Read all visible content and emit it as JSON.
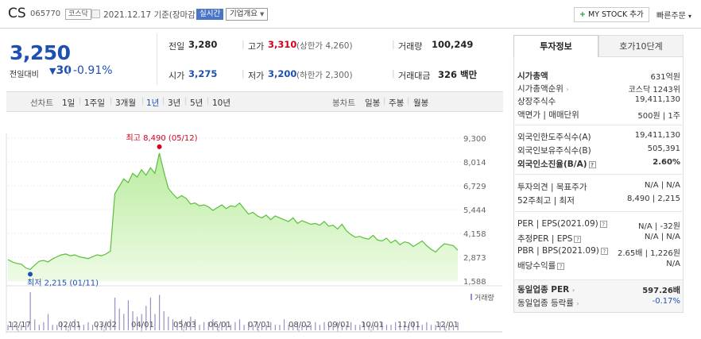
{
  "header": {
    "name": "CS",
    "code": "065770",
    "market": "코스닥",
    "date_text": "2021.12.17  기준(장마감)",
    "realtime_label": "실시간",
    "corp_info_label": "기업개요",
    "mystock_label": "MY STOCK 추가",
    "quick_order_label": "빠른주문"
  },
  "price": {
    "current": "3,250",
    "change_label": "전일대비",
    "change_value": "30",
    "change_pct": "-0.91%"
  },
  "quote": {
    "prev_label": "전일",
    "prev_value": "3,280",
    "high_label": "고가",
    "high_value": "3,310",
    "upper_limit": "(상한가 4,260)",
    "volume_label": "거래량",
    "volume_value": "100,249",
    "open_label": "시가",
    "open_value": "3,275",
    "low_label": "저가",
    "low_value": "3,200",
    "lower_limit": "(하한가 2,300)",
    "amount_label": "거래대금",
    "amount_value": "326 백만"
  },
  "period_bar": {
    "line_label": "선차트",
    "periods": [
      "1일",
      "1주일",
      "3개월",
      "1년",
      "3년",
      "5년",
      "10년"
    ],
    "candle_label": "봉차트",
    "candles": [
      "일봉",
      "주봉",
      "월봉"
    ]
  },
  "right_panel": {
    "tabs": [
      "투자정보",
      "호가10단계"
    ],
    "market_cap_label": "시가총액",
    "market_cap_value": "631억원",
    "cap_rank_label": "시가총액순위",
    "cap_rank_value": "코스닥 1243위",
    "shares_label": "상장주식수",
    "shares_value": "19,411,130",
    "par_label": "액면가 | 매매단위",
    "par_value": "500원 | 1주",
    "foreign_limit_label": "외국인한도주식수(A)",
    "foreign_limit_value": "19,411,130",
    "foreign_hold_label": "외국인보유주식수(B)",
    "foreign_hold_value": "505,391",
    "foreign_rate_label": "외국인소진율(B/A)",
    "foreign_rate_value": "2.60%",
    "opinion_label": "투자의견 | 목표주가",
    "opinion_value": "N/A | N/A",
    "week52_label": "52주최고 | 최저",
    "week52_value": "8,490 | 2,215",
    "per_label": "PER | EPS(2021.09)",
    "per_value": "N/A | -32원",
    "est_per_label": "추정PER | EPS",
    "est_per_value": "N/A | N/A",
    "pbr_label": "PBR | BPS(2021.09)",
    "pbr_value": "2.65배 | 1,226원",
    "div_label": "배당수익률",
    "div_value": "N/A",
    "sector_per_label": "동일업종 PER",
    "sector_per_value": "597.26배",
    "sector_rate_label": "동일업종 등락률",
    "sector_rate_value": "-0.17%"
  },
  "chart_data": {
    "type": "area",
    "high_annotation": "최고 8,490 (05/12)",
    "low_annotation": "최저 2,215 (01/11)",
    "volume_label": "거래량",
    "y_ticks": [
      "9,300",
      "8,014",
      "6,729",
      "5,444",
      "4,158",
      "2,873",
      "1,588"
    ],
    "ylim": [
      1588,
      9300
    ],
    "x_ticks": [
      "12/17",
      "02/01",
      "03/02",
      "04/01",
      "05/03",
      "06/01",
      "07/01",
      "08/02",
      "09/01",
      "10/01",
      "11/01",
      "12/01"
    ],
    "values": [
      2750,
      2620,
      2540,
      2500,
      2300,
      2215,
      2450,
      2650,
      2700,
      2620,
      2780,
      2900,
      3000,
      3050,
      2950,
      3000,
      2900,
      2850,
      2800,
      2900,
      3000,
      2950,
      3050,
      3200,
      6300,
      6700,
      7100,
      6900,
      7400,
      7200,
      7600,
      7300,
      7700,
      7400,
      8490,
      7500,
      6600,
      6300,
      6050,
      6200,
      6050,
      5750,
      5800,
      5650,
      5700,
      5600,
      5400,
      5550,
      5700,
      5500,
      5650,
      5600,
      5800,
      5500,
      5200,
      5300,
      5100,
      5000,
      5150,
      4900,
      5100,
      5000,
      4900,
      4800,
      5000,
      4700,
      4850,
      4750,
      4650,
      4700,
      4600,
      4800,
      4550,
      4600,
      4400,
      4650,
      4300,
      4100,
      3950,
      4000,
      3900,
      3850,
      4050,
      3800,
      3750,
      3900,
      3650,
      3800,
      3550,
      3700,
      3650,
      3450,
      3600,
      3750,
      3500,
      3300,
      3150,
      3400,
      3600,
      3550,
      3500,
      3250
    ],
    "volume": [
      2,
      3,
      2,
      2,
      3,
      14,
      4,
      2,
      3,
      6,
      2,
      2,
      3,
      2,
      2,
      4,
      2,
      2,
      3,
      2,
      2,
      2,
      3,
      4,
      12,
      8,
      6,
      11,
      7,
      5,
      6,
      9,
      12,
      6,
      13,
      7,
      5,
      4,
      3,
      4,
      3,
      5,
      4,
      2,
      3,
      3,
      4,
      2,
      3,
      3,
      2,
      3,
      4,
      2,
      3,
      2,
      3,
      2,
      2,
      3,
      2,
      2,
      4,
      2,
      2,
      3,
      2,
      2,
      2,
      3,
      2,
      3,
      2,
      2,
      3,
      2,
      2,
      3,
      2,
      2,
      3,
      2,
      2,
      2,
      3,
      2,
      2,
      3,
      2,
      2,
      2,
      3,
      2,
      2,
      3,
      2,
      2,
      3,
      2,
      2,
      2,
      3
    ]
  }
}
